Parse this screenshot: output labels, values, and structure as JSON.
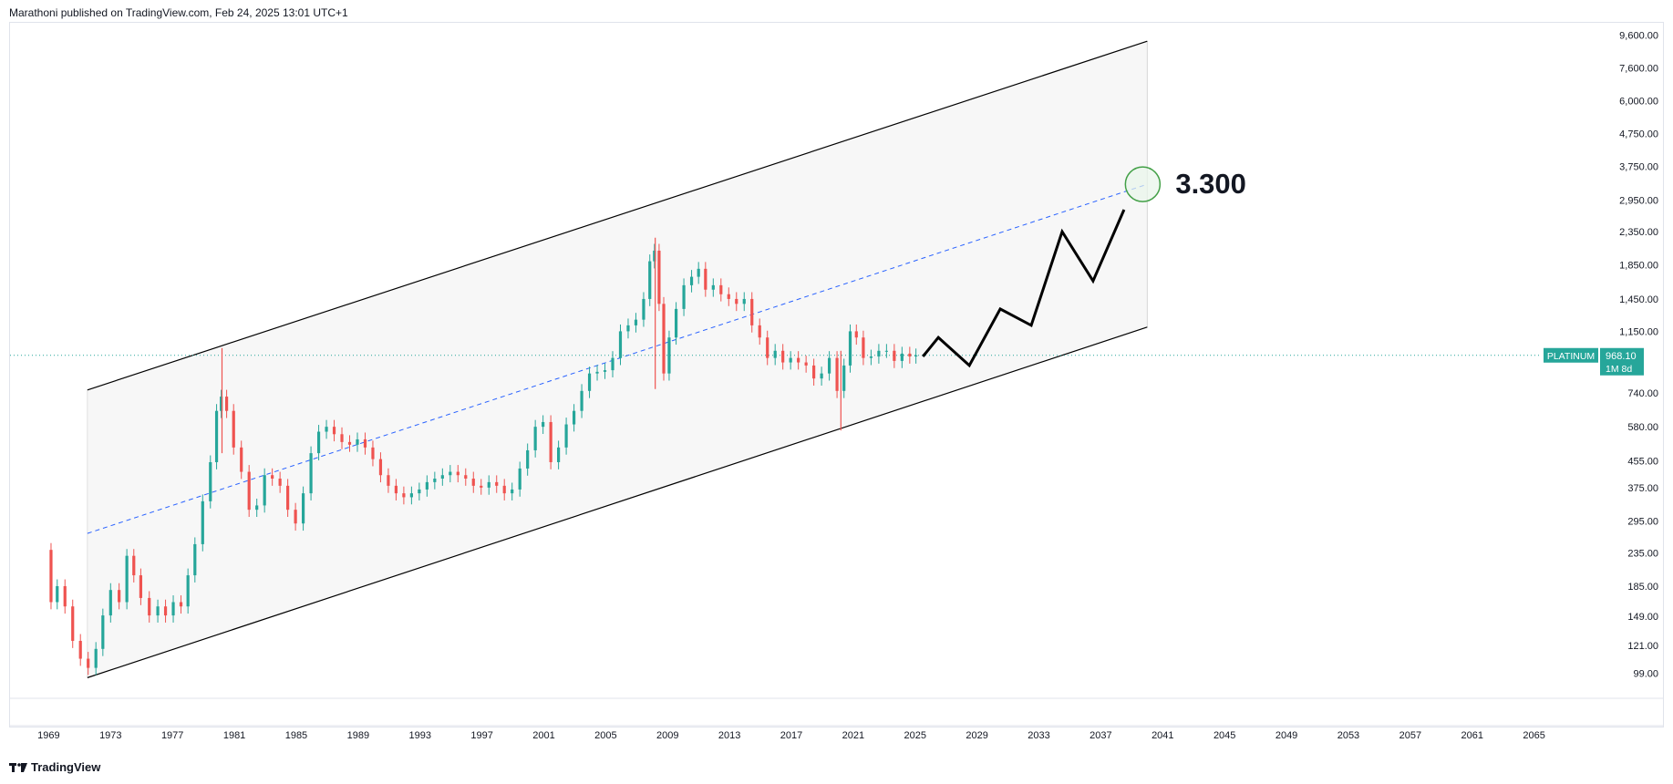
{
  "header": {
    "published_line": "Marathoni published on TradingView.com, Feb 24, 2025 13:01 UTC+1"
  },
  "footer": {
    "brand": "TradingView",
    "logo_icon": "tradingview-logo-icon"
  },
  "chart_data": {
    "type": "candlestick",
    "symbol_label": "PLATINUM",
    "last_price_label": "968.10",
    "countdown_label": "1M 8d",
    "last_price": 968.1,
    "target_label": "3.300",
    "target_value": 3300,
    "y_scale": "log",
    "ylim": [
      85,
      10500
    ],
    "xlim": [
      1966.5,
      2068.5
    ],
    "y_ticks": [
      "9,600.00",
      "7,600.00",
      "6,000.00",
      "4,750.00",
      "3,750.00",
      "2,950.00",
      "2,350.00",
      "1,850.00",
      "1,450.00",
      "1,150.00",
      "740.00",
      "580.00",
      "455.00",
      "375.00",
      "295.00",
      "235.00",
      "185.00",
      "149.00",
      "121.00",
      "99.00"
    ],
    "y_tick_values": [
      9600,
      7600,
      6000,
      4750,
      3750,
      2950,
      2350,
      1850,
      1450,
      1150,
      740,
      580,
      455,
      375,
      295,
      235,
      185,
      149,
      121,
      99
    ],
    "x_ticks": [
      "1969",
      "1973",
      "1977",
      "1981",
      "1985",
      "1989",
      "1993",
      "1997",
      "2001",
      "2005",
      "2009",
      "2013",
      "2017",
      "2021",
      "2025",
      "2029",
      "2033",
      "2037",
      "2041",
      "2045",
      "2049",
      "2053",
      "2057",
      "2061",
      "2065"
    ],
    "x_tick_values": [
      1969,
      1973,
      1977,
      1981,
      1985,
      1989,
      1993,
      1997,
      2001,
      2005,
      2009,
      2013,
      2017,
      2021,
      2025,
      2029,
      2033,
      2037,
      2041,
      2045,
      2049,
      2053,
      2057,
      2061,
      2065
    ],
    "price_path": [
      [
        1969.0,
        240
      ],
      [
        1969.3,
        165
      ],
      [
        1969.8,
        185
      ],
      [
        1970.3,
        160
      ],
      [
        1970.8,
        125
      ],
      [
        1971.3,
        110
      ],
      [
        1971.8,
        103
      ],
      [
        1972.3,
        118
      ],
      [
        1972.7,
        150
      ],
      [
        1973.3,
        180
      ],
      [
        1973.8,
        165
      ],
      [
        1974.3,
        230
      ],
      [
        1974.7,
        200
      ],
      [
        1975.2,
        170
      ],
      [
        1975.8,
        150
      ],
      [
        1976.3,
        160
      ],
      [
        1976.8,
        150
      ],
      [
        1977.3,
        165
      ],
      [
        1977.8,
        160
      ],
      [
        1978.2,
        200
      ],
      [
        1978.7,
        250
      ],
      [
        1979.2,
        340
      ],
      [
        1979.7,
        450
      ],
      [
        1980.0,
        650
      ],
      [
        1980.3,
        720
      ],
      [
        1980.7,
        650
      ],
      [
        1981.2,
        500
      ],
      [
        1981.7,
        420
      ],
      [
        1982.2,
        320
      ],
      [
        1982.7,
        330
      ],
      [
        1983.2,
        410
      ],
      [
        1983.7,
        400
      ],
      [
        1984.2,
        380
      ],
      [
        1984.7,
        320
      ],
      [
        1985.2,
        290
      ],
      [
        1985.7,
        360
      ],
      [
        1986.2,
        480
      ],
      [
        1986.7,
        560
      ],
      [
        1987.2,
        580
      ],
      [
        1987.7,
        550
      ],
      [
        1988.2,
        520
      ],
      [
        1988.7,
        510
      ],
      [
        1989.2,
        530
      ],
      [
        1989.7,
        500
      ],
      [
        1990.2,
        460
      ],
      [
        1990.7,
        410
      ],
      [
        1991.2,
        380
      ],
      [
        1991.7,
        360
      ],
      [
        1992.2,
        350
      ],
      [
        1992.7,
        360
      ],
      [
        1993.2,
        370
      ],
      [
        1993.7,
        390
      ],
      [
        1994.2,
        400
      ],
      [
        1994.7,
        410
      ],
      [
        1995.2,
        420
      ],
      [
        1995.7,
        410
      ],
      [
        1996.2,
        400
      ],
      [
        1996.7,
        380
      ],
      [
        1997.2,
        375
      ],
      [
        1997.7,
        390
      ],
      [
        1998.2,
        380
      ],
      [
        1998.7,
        360
      ],
      [
        1999.2,
        370
      ],
      [
        1999.7,
        430
      ],
      [
        2000.2,
        490
      ],
      [
        2000.7,
        580
      ],
      [
        2001.2,
        600
      ],
      [
        2001.7,
        450
      ],
      [
        2002.2,
        500
      ],
      [
        2002.7,
        590
      ],
      [
        2003.2,
        650
      ],
      [
        2003.7,
        750
      ],
      [
        2004.2,
        850
      ],
      [
        2004.7,
        860
      ],
      [
        2005.2,
        870
      ],
      [
        2005.7,
        950
      ],
      [
        2006.2,
        1150
      ],
      [
        2006.7,
        1200
      ],
      [
        2007.2,
        1250
      ],
      [
        2007.7,
        1450
      ],
      [
        2008.0,
        1900
      ],
      [
        2008.3,
        2050
      ],
      [
        2008.6,
        1400
      ],
      [
        2008.9,
        850
      ],
      [
        2009.3,
        1100
      ],
      [
        2009.8,
        1350
      ],
      [
        2010.3,
        1600
      ],
      [
        2010.8,
        1700
      ],
      [
        2011.2,
        1800
      ],
      [
        2011.7,
        1550
      ],
      [
        2012.2,
        1600
      ],
      [
        2012.7,
        1500
      ],
      [
        2013.2,
        1450
      ],
      [
        2013.7,
        1400
      ],
      [
        2014.2,
        1450
      ],
      [
        2014.7,
        1200
      ],
      [
        2015.2,
        1100
      ],
      [
        2015.7,
        950
      ],
      [
        2016.2,
        1000
      ],
      [
        2016.7,
        920
      ],
      [
        2017.2,
        950
      ],
      [
        2017.7,
        920
      ],
      [
        2018.2,
        900
      ],
      [
        2018.7,
        820
      ],
      [
        2019.2,
        850
      ],
      [
        2019.7,
        950
      ],
      [
        2020.2,
        750
      ],
      [
        2020.6,
        900
      ],
      [
        2021.0,
        1150
      ],
      [
        2021.4,
        1100
      ],
      [
        2021.9,
        950
      ],
      [
        2022.4,
        960
      ],
      [
        2022.9,
        1000
      ],
      [
        2023.4,
        1000
      ],
      [
        2023.9,
        930
      ],
      [
        2024.4,
        980
      ],
      [
        2024.9,
        960
      ],
      [
        2025.2,
        968
      ]
    ],
    "wicks": [
      [
        1980.2,
        1020,
        480
      ],
      [
        2008.2,
        2250,
        760
      ],
      [
        2020.2,
        1000,
        565
      ]
    ],
    "channel": {
      "upper": [
        [
          1971.5,
          755
        ],
        [
          2040.0,
          9200
        ]
      ],
      "lower": [
        [
          1971.5,
          96
        ],
        [
          2040.0,
          1185
        ]
      ],
      "midline": [
        [
          1971.5,
          270
        ],
        [
          2040.0,
          3300
        ]
      ]
    },
    "projection": [
      [
        2025.5,
        960
      ],
      [
        2026.5,
        1100
      ],
      [
        2028.5,
        900
      ],
      [
        2030.5,
        1350
      ],
      [
        2032.5,
        1200
      ],
      [
        2034.5,
        2350
      ],
      [
        2036.5,
        1650
      ],
      [
        2038.5,
        2750
      ]
    ],
    "colors": {
      "up": "#26a69a",
      "down": "#ef5350",
      "price_line": "#26a69a",
      "midline": "#2962ff",
      "channel": "#000000",
      "channel_fill": "#f2f2f2",
      "projection": "#000000",
      "target_circle_stroke": "#43a047",
      "target_circle_fill": "#e8f5e9",
      "axis_text": "#131722"
    }
  }
}
